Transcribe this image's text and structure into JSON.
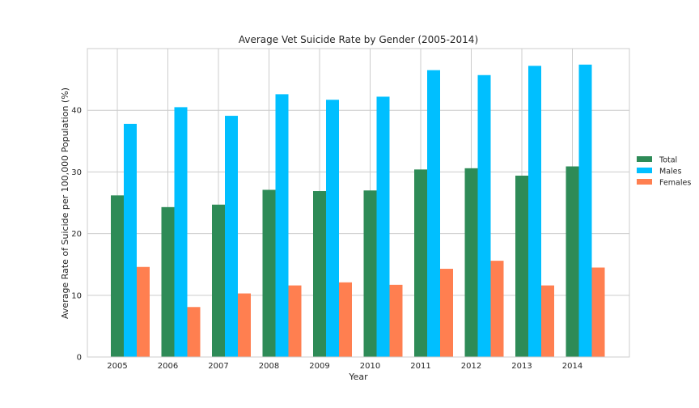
{
  "chart_data": {
    "type": "bar",
    "title": "Average Vet Suicide Rate by Gender (2005-2014)",
    "xlabel": "Year",
    "ylabel": "Average Rate of Suicide per 100,000 Population (%)",
    "categories": [
      "2005",
      "2006",
      "2007",
      "2008",
      "2009",
      "2010",
      "2011",
      "2012",
      "2013",
      "2014"
    ],
    "ylim": [
      0,
      50
    ],
    "yticks": [
      0,
      10,
      20,
      30,
      40
    ],
    "grid": true,
    "legend_position": "right",
    "series": [
      {
        "name": "Total",
        "color": "#2e8b57",
        "values": [
          26.2,
          24.3,
          24.7,
          27.1,
          26.9,
          27.0,
          30.4,
          30.6,
          29.4,
          30.9
        ]
      },
      {
        "name": "Males",
        "color": "#00bfff",
        "values": [
          37.8,
          40.5,
          39.1,
          42.6,
          41.7,
          42.2,
          46.5,
          45.7,
          47.2,
          47.4
        ]
      },
      {
        "name": "Females",
        "color": "#ff7f50",
        "values": [
          14.6,
          8.1,
          10.3,
          11.6,
          12.1,
          11.7,
          14.3,
          15.6,
          11.6,
          14.5
        ]
      }
    ]
  }
}
